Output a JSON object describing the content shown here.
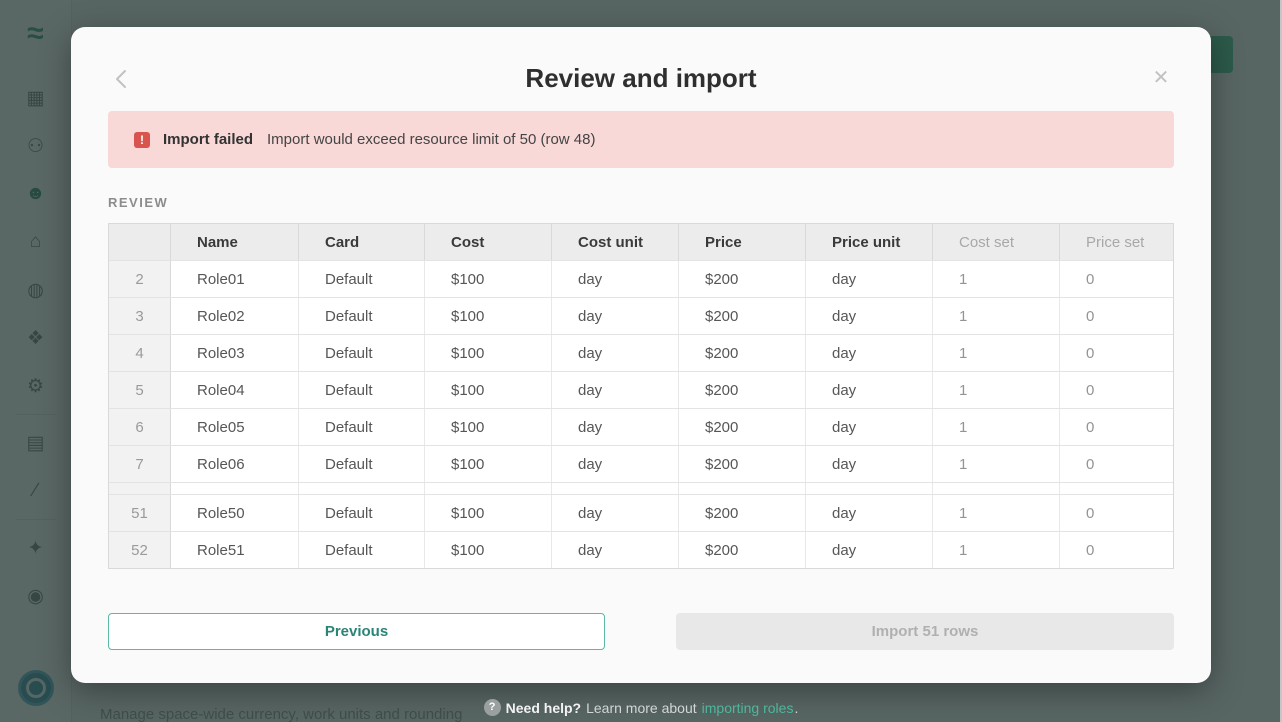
{
  "colors": {
    "accent_teal": "#2a8576",
    "background_button_green": "#2ebd85",
    "error_red": "#d9534f",
    "banner_pink": "#f9d8d8",
    "link_teal": "#4db79b"
  },
  "sidebar": {
    "logo_glyph": "≈",
    "icons": [
      {
        "name": "grid-icon",
        "glyph": "▦",
        "active": false
      },
      {
        "name": "users-icon",
        "glyph": "⚇",
        "active": false
      },
      {
        "name": "user-icon",
        "glyph": "☻",
        "active": true
      },
      {
        "name": "buildings-icon",
        "glyph": "⌂",
        "active": false
      },
      {
        "name": "coin-icon",
        "glyph": "◍",
        "active": false
      },
      {
        "name": "tag-icon",
        "glyph": "❖",
        "active": false
      },
      {
        "name": "gear-icon",
        "glyph": "⚙",
        "active": false
      },
      {
        "name": "divider"
      },
      {
        "name": "document-icon",
        "glyph": "▤",
        "active": false
      },
      {
        "name": "chart-icon",
        "glyph": "∕",
        "active": false
      },
      {
        "name": "divider"
      },
      {
        "name": "star-icon",
        "glyph": "✦",
        "active": false
      },
      {
        "name": "help-circle-icon",
        "glyph": "◉",
        "active": false
      }
    ]
  },
  "background": {
    "caption": "Manage space-wide currency, work units and rounding"
  },
  "modal": {
    "title": "Review and import",
    "banner": {
      "icon": "!",
      "title": "Import failed",
      "message": "Import would exceed resource limit of 50 (row 48)"
    },
    "section_label": "REVIEW",
    "table": {
      "columns": [
        {
          "label": "",
          "muted": false
        },
        {
          "label": "Name",
          "muted": false
        },
        {
          "label": "Card",
          "muted": false
        },
        {
          "label": "Cost",
          "muted": false
        },
        {
          "label": "Cost unit",
          "muted": false
        },
        {
          "label": "Price",
          "muted": false
        },
        {
          "label": "Price unit",
          "muted": false
        },
        {
          "label": "Cost set",
          "muted": true
        },
        {
          "label": "Price set",
          "muted": true
        }
      ],
      "rows": [
        {
          "num": "2",
          "name": "Role01",
          "card": "Default",
          "cost": "$100",
          "cost_unit": "day",
          "price": "$200",
          "price_unit": "day",
          "cost_set": "1",
          "price_set": "0"
        },
        {
          "num": "3",
          "name": "Role02",
          "card": "Default",
          "cost": "$100",
          "cost_unit": "day",
          "price": "$200",
          "price_unit": "day",
          "cost_set": "1",
          "price_set": "0"
        },
        {
          "num": "4",
          "name": "Role03",
          "card": "Default",
          "cost": "$100",
          "cost_unit": "day",
          "price": "$200",
          "price_unit": "day",
          "cost_set": "1",
          "price_set": "0"
        },
        {
          "num": "5",
          "name": "Role04",
          "card": "Default",
          "cost": "$100",
          "cost_unit": "day",
          "price": "$200",
          "price_unit": "day",
          "cost_set": "1",
          "price_set": "0"
        },
        {
          "num": "6",
          "name": "Role05",
          "card": "Default",
          "cost": "$100",
          "cost_unit": "day",
          "price": "$200",
          "price_unit": "day",
          "cost_set": "1",
          "price_set": "0"
        },
        {
          "num": "7",
          "name": "Role06",
          "card": "Default",
          "cost": "$100",
          "cost_unit": "day",
          "price": "$200",
          "price_unit": "day",
          "cost_set": "1",
          "price_set": "0"
        },
        {
          "gap": true
        },
        {
          "num": "51",
          "name": "Role50",
          "card": "Default",
          "cost": "$100",
          "cost_unit": "day",
          "price": "$200",
          "price_unit": "day",
          "cost_set": "1",
          "price_set": "0"
        },
        {
          "num": "52",
          "name": "Role51",
          "card": "Default",
          "cost": "$100",
          "cost_unit": "day",
          "price": "$200",
          "price_unit": "day",
          "cost_set": "1",
          "price_set": "0"
        }
      ]
    },
    "buttons": {
      "previous": "Previous",
      "import": "Import 51 rows"
    }
  },
  "footer": {
    "icon": "?",
    "bold": "Need help?",
    "text": "Learn more about",
    "link": "importing roles",
    "period": "."
  }
}
